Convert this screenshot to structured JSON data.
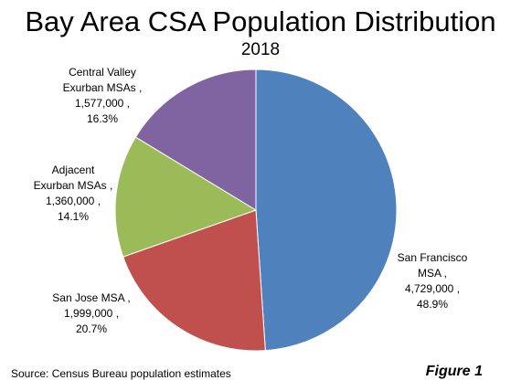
{
  "chart_data": {
    "type": "pie",
    "title": "Bay Area CSA Population Distribution",
    "subtitle": "2018",
    "start_angle_deg": 0,
    "direction": "clockwise",
    "slices": [
      {
        "label_lines": [
          "San Francisco",
          "MSA ,",
          "4,729,000 ,",
          "48.9%"
        ],
        "value": 4729000,
        "percent": "48.9%",
        "color": "#4F81BD"
      },
      {
        "label_lines": [
          "San Jose MSA ,",
          "1,999,000 ,",
          "20.7%"
        ],
        "value": 1999000,
        "percent": "20.7%",
        "color": "#C0504D"
      },
      {
        "label_lines": [
          "Adjacent",
          "Exurban MSAs ,",
          "1,360,000 ,",
          "14.1%"
        ],
        "value": 1360000,
        "percent": "14.1%",
        "color": "#9BBB59"
      },
      {
        "label_lines": [
          "Central Valley",
          "Exurban MSAs ,",
          "1,577,000 ,",
          "16.3%"
        ],
        "value": 1577000,
        "percent": "16.3%",
        "color": "#8064A2"
      }
    ]
  },
  "footer": {
    "source": "Source: Census Bureau population estimates",
    "figure_label": "Figure 1"
  }
}
